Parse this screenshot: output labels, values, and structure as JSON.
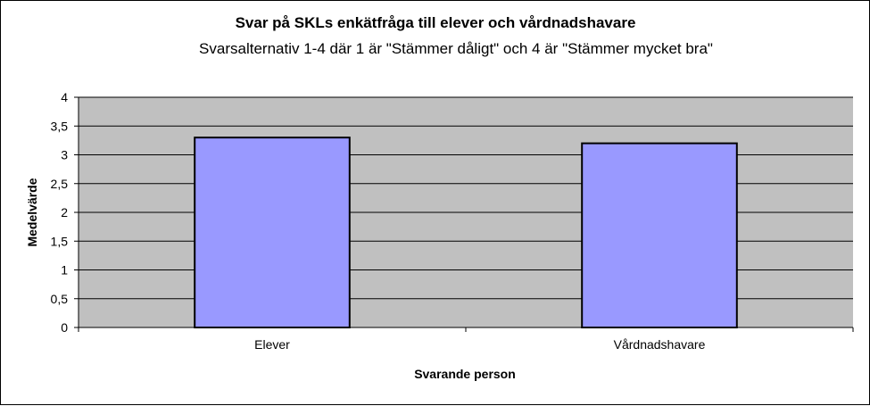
{
  "chart_data": {
    "type": "bar",
    "title": "Svar på SKLs enkätfråga till elever och vårdnadshavare",
    "subtitle": "Svarsalternativ 1-4 där 1 är \"Stämmer dåligt\" och 4 är \"Stämmer mycket bra\"",
    "xlabel": "Svarande person",
    "ylabel": "Medelvärde",
    "categories": [
      "Elever",
      "Vårdnadshavare"
    ],
    "values": [
      3.3,
      3.2
    ],
    "ylim": [
      0,
      4
    ],
    "yticks": [
      0,
      0.5,
      1,
      1.5,
      2,
      2.5,
      3,
      3.5,
      4
    ],
    "ytick_labels": [
      "0",
      "0,5",
      "1",
      "1,5",
      "2",
      "2,5",
      "3",
      "3,5",
      "4"
    ],
    "grid": true,
    "legend": "none",
    "colors": {
      "bar_fill": "#9999ff",
      "bar_stroke": "#000000",
      "plot_background": "#c0c0c0",
      "gridline": "#000000"
    }
  }
}
